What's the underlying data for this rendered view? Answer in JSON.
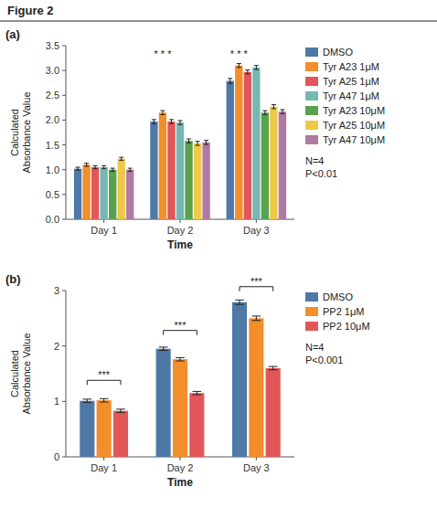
{
  "title": "Figure 2",
  "chart_data": [
    {
      "type": "bar",
      "title": "(a)",
      "xlabel": "Time",
      "ylabel": "Calculated\nAbsorbance Value",
      "categories": [
        "Day 1",
        "Day 2",
        "Day 3"
      ],
      "series": [
        {
          "name": "DMSO",
          "color": "#4e79a7",
          "values": [
            1.02,
            1.97,
            2.79
          ],
          "errors": [
            0.03,
            0.04,
            0.05
          ]
        },
        {
          "name": "Tyr A23 1μM",
          "color": "#f28e2b",
          "values": [
            1.1,
            2.15,
            3.1
          ],
          "errors": [
            0.03,
            0.04,
            0.04
          ]
        },
        {
          "name": "Tyr A25 1μM",
          "color": "#e15759",
          "values": [
            1.05,
            1.97,
            2.97
          ],
          "errors": [
            0.03,
            0.04,
            0.04
          ]
        },
        {
          "name": "Tyr A47 1μM",
          "color": "#76b7b2",
          "values": [
            1.05,
            1.95,
            3.06
          ],
          "errors": [
            0.03,
            0.04,
            0.04
          ]
        },
        {
          "name": "Tyr A23 10μM",
          "color": "#59a14f",
          "values": [
            1.0,
            1.58,
            2.15
          ],
          "errors": [
            0.03,
            0.04,
            0.04
          ]
        },
        {
          "name": "Tyr A25 10μM",
          "color": "#edc948",
          "values": [
            1.22,
            1.53,
            2.27
          ],
          "errors": [
            0.03,
            0.04,
            0.04
          ]
        },
        {
          "name": "Tyr A47 10μM",
          "color": "#b07aa1",
          "values": [
            1.0,
            1.55,
            2.17
          ],
          "errors": [
            0.03,
            0.04,
            0.04
          ]
        }
      ],
      "ylim": [
        0.0,
        3.5
      ],
      "yticks": [
        {
          "value": 0.0,
          "label": "0.0"
        },
        0.5,
        {
          "value": 1.0,
          "label": "1.0"
        },
        1.5,
        {
          "value": 2.0,
          "label": "2.0"
        },
        2.5,
        {
          "value": 3.0,
          "label": "3.0"
        },
        3.5
      ],
      "annotations": [
        {
          "text": "* * *",
          "x": "Day 2",
          "series": "Tyr A23 1μM",
          "y": 3.22
        },
        {
          "text": "* * *",
          "x": "Day 3",
          "series": "Tyr A23 1μM",
          "y": 3.22
        },
        {
          "text": "N=4\nP<0.01"
        }
      ]
    },
    {
      "type": "bar",
      "title": "(b)",
      "xlabel": "Time",
      "ylabel": "Calculated\nAbsorbance Value",
      "categories": [
        "Day 1",
        "Day 2",
        "Day 3"
      ],
      "series": [
        {
          "name": "DMSO",
          "color": "#4e79a7",
          "values": [
            1.01,
            1.95,
            2.79
          ],
          "errors": [
            0.03,
            0.03,
            0.04
          ]
        },
        {
          "name": "PP2 1μM",
          "color": "#f28e2b",
          "values": [
            1.02,
            1.76,
            2.5
          ],
          "errors": [
            0.03,
            0.03,
            0.04
          ]
        },
        {
          "name": "PP2 10μM",
          "color": "#e15759",
          "values": [
            0.83,
            1.15,
            1.6
          ],
          "errors": [
            0.03,
            0.03,
            0.03
          ]
        }
      ],
      "ylim": [
        0,
        3.0
      ],
      "yticks": [
        0,
        1,
        2,
        3
      ],
      "annotations": [
        {
          "text": "***",
          "x": "Day 1",
          "from": "DMSO",
          "to": "PP2 10μM",
          "y": 1.38
        },
        {
          "text": "***",
          "x": "Day 2",
          "from": "DMSO",
          "to": "PP2 10μM",
          "y": 2.28
        },
        {
          "text": "***",
          "x": "Day 3",
          "from": "DMSO",
          "to": "PP2 10μM",
          "y": 3.07
        },
        {
          "text": "N=4\nP<0.001"
        }
      ]
    }
  ]
}
